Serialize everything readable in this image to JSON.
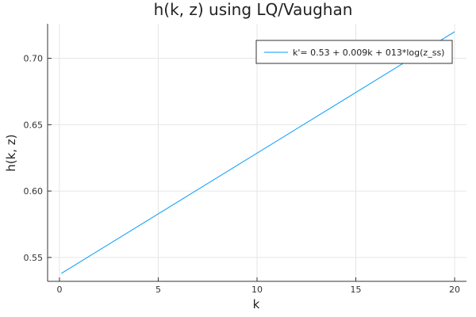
{
  "chart_data": {
    "type": "line",
    "title": "h(k, z) using LQ/Vaughan",
    "xlabel": "k",
    "ylabel": "h(k, z)",
    "xlim": [
      -0.6,
      20.6
    ],
    "ylim": [
      0.532,
      0.726
    ],
    "xticks": [
      0,
      5,
      10,
      15,
      20
    ],
    "xtick_labels": [
      "0",
      "5",
      "10",
      "15",
      "20"
    ],
    "yticks": [
      0.55,
      0.6,
      0.65,
      0.7
    ],
    "ytick_labels": [
      "0.55",
      "0.60",
      "0.65",
      "0.70"
    ],
    "grid": true,
    "legend_position": "top-right",
    "series": [
      {
        "name": "k'= 0.53 + 0.009k + 013*log(z_ss)",
        "color": "#009af9",
        "x": [
          0.1,
          20
        ],
        "y": [
          0.538,
          0.72
        ]
      }
    ]
  }
}
